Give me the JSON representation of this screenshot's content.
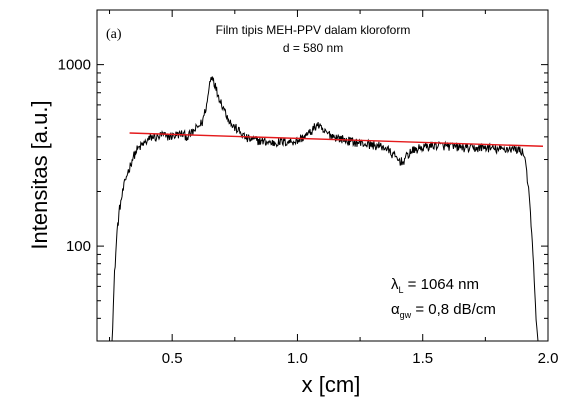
{
  "chart_data": {
    "type": "line",
    "panel_label": "(a)",
    "title_line1": "Film tipis MEH-PPV dalam kloroform",
    "title_line2": "d = 580 nm",
    "xlabel": "x [cm]",
    "ylabel": "Intensitas [a.u.]",
    "xlim": [
      0.2,
      2.0
    ],
    "ylim": [
      30,
      2000
    ],
    "yscale": "log",
    "x_ticks": [
      0.5,
      1.0,
      1.5,
      2.0
    ],
    "x_tick_labels": [
      "0.5",
      "1.0",
      "1.5",
      "2.0"
    ],
    "y_ticks": [
      100,
      1000
    ],
    "y_tick_labels": [
      "100",
      "1000"
    ],
    "grid": false,
    "annotations": {
      "lambda_symbol": "λ",
      "lambda_sub": "L",
      "lambda_value": " = 1064 nm",
      "alpha_symbol": "α",
      "alpha_sub": "gw",
      "alpha_value": " = 0,8 dB/cm"
    },
    "series": [
      {
        "color": "#000000",
        "style": "noisy-line",
        "points": [
          [
            0.26,
            30
          ],
          [
            0.27,
            70
          ],
          [
            0.28,
            120
          ],
          [
            0.29,
            160
          ],
          [
            0.3,
            190
          ],
          [
            0.31,
            220
          ],
          [
            0.32,
            250
          ],
          [
            0.33,
            270
          ],
          [
            0.34,
            300
          ],
          [
            0.35,
            320
          ],
          [
            0.36,
            340
          ],
          [
            0.38,
            360
          ],
          [
            0.4,
            380
          ],
          [
            0.42,
            400
          ],
          [
            0.44,
            395
          ],
          [
            0.46,
            410
          ],
          [
            0.48,
            400
          ],
          [
            0.5,
            405
          ],
          [
            0.52,
            410
          ],
          [
            0.54,
            415
          ],
          [
            0.56,
            400
          ],
          [
            0.58,
            420
          ],
          [
            0.6,
            450
          ],
          [
            0.62,
            480
          ],
          [
            0.64,
            620
          ],
          [
            0.65,
            800
          ],
          [
            0.66,
            880
          ],
          [
            0.67,
            780
          ],
          [
            0.68,
            700
          ],
          [
            0.7,
            600
          ],
          [
            0.72,
            520
          ],
          [
            0.74,
            460
          ],
          [
            0.76,
            440
          ],
          [
            0.78,
            410
          ],
          [
            0.8,
            390
          ],
          [
            0.85,
            380
          ],
          [
            0.9,
            370
          ],
          [
            0.95,
            375
          ],
          [
            1.0,
            380
          ],
          [
            1.05,
            420
          ],
          [
            1.08,
            470
          ],
          [
            1.1,
            430
          ],
          [
            1.15,
            400
          ],
          [
            1.2,
            380
          ],
          [
            1.25,
            370
          ],
          [
            1.3,
            360
          ],
          [
            1.35,
            350
          ],
          [
            1.4,
            300
          ],
          [
            1.42,
            290
          ],
          [
            1.45,
            330
          ],
          [
            1.5,
            350
          ],
          [
            1.55,
            360
          ],
          [
            1.6,
            355
          ],
          [
            1.65,
            350
          ],
          [
            1.7,
            345
          ],
          [
            1.75,
            350
          ],
          [
            1.8,
            340
          ],
          [
            1.85,
            345
          ],
          [
            1.88,
            340
          ],
          [
            1.9,
            330
          ],
          [
            1.91,
            300
          ],
          [
            1.92,
            220
          ],
          [
            1.93,
            150
          ],
          [
            1.94,
            90
          ],
          [
            1.95,
            45
          ],
          [
            1.96,
            30
          ]
        ]
      },
      {
        "color": "#e41a1c",
        "style": "fit-line",
        "points": [
          [
            0.33,
            420
          ],
          [
            1.98,
            355
          ]
        ]
      }
    ]
  }
}
